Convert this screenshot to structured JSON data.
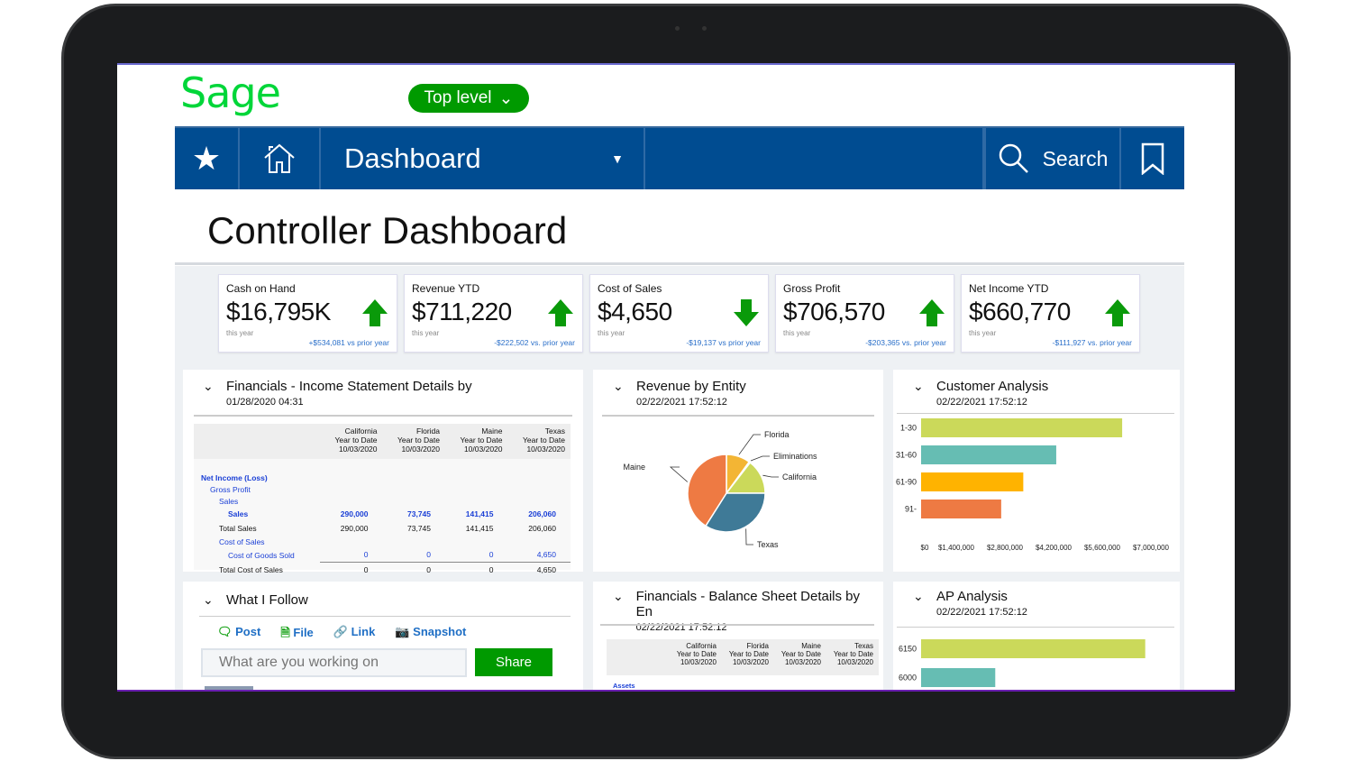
{
  "header": {
    "logo": "Sage",
    "level_button": "Top level"
  },
  "nav": {
    "favorites_icon": "star-icon",
    "home_icon": "home-icon",
    "section": "Dashboard",
    "search": "Search",
    "bookmark_icon": "bookmark-icon"
  },
  "page_title": "Controller Dashboard",
  "kpis": [
    {
      "label": "Cash on Hand",
      "value": "$16,795K",
      "period": "this year",
      "comparison": "+$534,081 vs prior year",
      "trend": "up"
    },
    {
      "label": "Revenue YTD",
      "value": "$711,220",
      "period": "this year",
      "comparison": "-$222,502 vs. prior year",
      "trend": "up"
    },
    {
      "label": "Cost of Sales",
      "value": "$4,650",
      "period": "this year",
      "comparison": "-$19,137 vs prior year",
      "trend": "down"
    },
    {
      "label": "Gross Profit",
      "value": "$706,570",
      "period": "this year",
      "comparison": "-$203,365 vs. prior year",
      "trend": "up"
    },
    {
      "label": "Net Income YTD",
      "value": "$660,770",
      "period": "this year",
      "comparison": "-$111,927 vs. prior year",
      "trend": "up"
    }
  ],
  "income_statement": {
    "title": "Financials - Income Statement Details by",
    "timestamp": "01/28/2020 04:31",
    "columns": [
      [
        "California",
        "Year to Date",
        "10/03/2020"
      ],
      [
        "Florida",
        "Year to Date",
        "10/03/2020"
      ],
      [
        "Maine",
        "Year to Date",
        "10/03/2020"
      ],
      [
        "Texas",
        "Year to Date",
        "10/03/2020"
      ]
    ],
    "rows": [
      {
        "label": "Net Income (Loss)",
        "values": []
      },
      {
        "label": "Gross Profit",
        "values": []
      },
      {
        "label": "Sales",
        "values": []
      },
      {
        "label": "Sales",
        "values": [
          "290,000",
          "73,745",
          "141,415",
          "206,060"
        ]
      },
      {
        "label": "Total Sales",
        "values": [
          "290,000",
          "73,745",
          "141,415",
          "206,060"
        ]
      },
      {
        "label": "Cost of Sales",
        "values": []
      },
      {
        "label": "Cost of Goods Sold",
        "values": [
          "0",
          "0",
          "0",
          "4,650"
        ]
      },
      {
        "label": "Total Cost of Sales",
        "values": [
          "0",
          "0",
          "0",
          "4,650"
        ]
      }
    ]
  },
  "revenue_by_entity": {
    "title": "Revenue by Entity",
    "timestamp": "02/22/2021 17:52:12"
  },
  "customer_analysis": {
    "title": "Customer Analysis",
    "timestamp": "02/22/2021 17:52:12"
  },
  "what_i_follow": {
    "title": "What I Follow",
    "actions": [
      "Post",
      "File",
      "Link",
      "Snapshot"
    ],
    "placeholder": "What are you working on",
    "share": "Share"
  },
  "balance_sheet": {
    "title": "Financials - Balance Sheet Details by En",
    "timestamp": "02/22/2021 17:52:12",
    "columns": [
      [
        "California",
        "Year to Date",
        "10/03/2020"
      ],
      [
        "Florida",
        "Year to Date",
        "10/03/2020"
      ],
      [
        "Maine",
        "Year to Date",
        "10/03/2020"
      ],
      [
        "Texas",
        "Year to Date",
        "10/03/2020"
      ]
    ],
    "first_row": "Assets"
  },
  "ap_analysis": {
    "title": "AP Analysis",
    "timestamp": "02/22/2021 17:52:12"
  },
  "chart_data": [
    {
      "type": "pie",
      "categories": [
        "Florida",
        "Eliminations",
        "California",
        "Texas",
        "Maine"
      ],
      "values": [
        10,
        0.5,
        14.5,
        34,
        41
      ],
      "colors": [
        "#f3b534",
        "#f7e08a",
        "#cbd95a",
        "#3f7a97",
        "#ee7a43"
      ]
    },
    {
      "type": "bar",
      "orientation": "horizontal",
      "categories": [
        "1-30",
        "31-60",
        "61-90",
        "91-"
      ],
      "values": [
        6100000,
        4100000,
        3100000,
        2430000
      ],
      "colors": [
        "#cbd95a",
        "#66bdb3",
        "#ffb300",
        "#ee7a43"
      ],
      "xlim": [
        0,
        7000000
      ],
      "xticks": [
        "$0",
        "$1,400,000",
        "$2,800,000",
        "$4,200,000",
        "$5,600,000",
        "$7,000,000"
      ]
    },
    {
      "type": "bar",
      "orientation": "horizontal",
      "categories": [
        "6150",
        "6000"
      ],
      "values": [
        6800000,
        2250000
      ],
      "colors": [
        "#cbd95a",
        "#66bdb3"
      ],
      "xlim": [
        0,
        7000000
      ]
    }
  ]
}
